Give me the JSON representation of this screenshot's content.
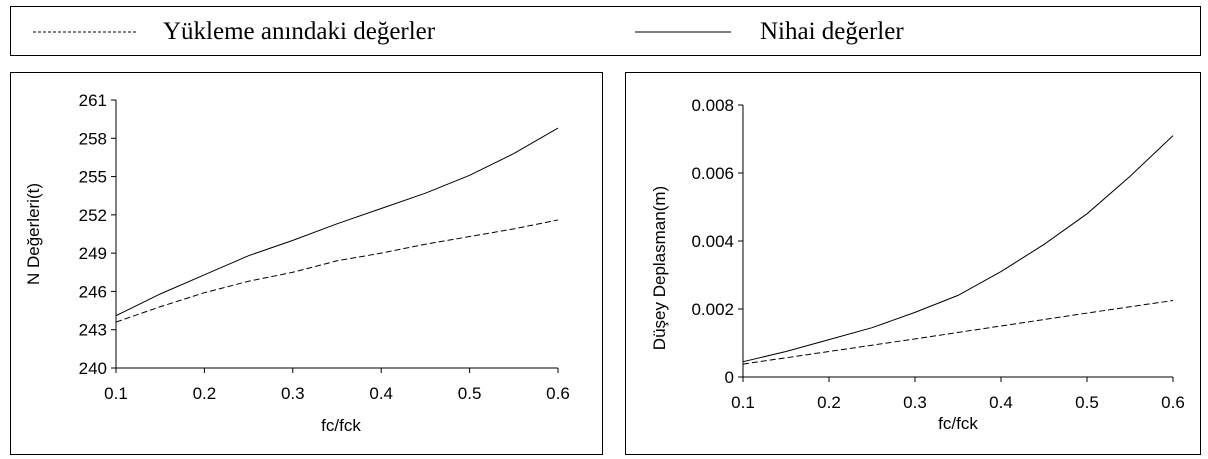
{
  "legend": {
    "items": [
      {
        "label": "Yükleme anındaki değerler",
        "style": "dashed"
      },
      {
        "label": "Nihai değerler",
        "style": "solid"
      }
    ]
  },
  "chart_data": [
    {
      "type": "line",
      "title": "",
      "xlabel": "fc/fck",
      "ylabel": "N Değerleri(t)",
      "xlim": [
        0.1,
        0.6
      ],
      "ylim": [
        240,
        261
      ],
      "xticks": [
        "0.1",
        "0.2",
        "0.3",
        "0.4",
        "0.5",
        "0.6"
      ],
      "yticks": [
        "240",
        "243",
        "246",
        "249",
        "252",
        "255",
        "258",
        "261"
      ],
      "grid": false,
      "series": [
        {
          "name": "Yükleme anındaki değerler",
          "style": "dashed",
          "x": [
            0.1,
            0.15,
            0.2,
            0.25,
            0.3,
            0.35,
            0.4,
            0.45,
            0.5,
            0.55,
            0.6
          ],
          "y": [
            243.6,
            244.8,
            245.9,
            246.8,
            247.5,
            248.4,
            249.0,
            249.7,
            250.3,
            250.9,
            251.6
          ]
        },
        {
          "name": "Nihai değerler",
          "style": "solid",
          "x": [
            0.1,
            0.15,
            0.2,
            0.25,
            0.3,
            0.35,
            0.4,
            0.45,
            0.5,
            0.55,
            0.6
          ],
          "y": [
            244.1,
            245.8,
            247.3,
            248.8,
            250.0,
            251.3,
            252.5,
            253.7,
            255.1,
            256.8,
            258.8
          ]
        }
      ]
    },
    {
      "type": "line",
      "title": "",
      "xlabel": "fc/fck",
      "ylabel": "Düşey Deplasman(m)",
      "xlim": [
        0.1,
        0.6
      ],
      "ylim": [
        0,
        0.008
      ],
      "xticks": [
        "0.1",
        "0.2",
        "0.3",
        "0.4",
        "0.5",
        "0.6"
      ],
      "yticks": [
        "0",
        "0.002",
        "0.004",
        "0.006",
        "0.008"
      ],
      "grid": false,
      "series": [
        {
          "name": "Yükleme anındaki değerler",
          "style": "dashed",
          "x": [
            0.1,
            0.2,
            0.3,
            0.4,
            0.5,
            0.6
          ],
          "y": [
            0.00038,
            0.00075,
            0.00112,
            0.0015,
            0.00188,
            0.00225
          ]
        },
        {
          "name": "Nihai değerler",
          "style": "solid",
          "x": [
            0.1,
            0.15,
            0.2,
            0.25,
            0.3,
            0.35,
            0.4,
            0.45,
            0.5,
            0.55,
            0.6
          ],
          "y": [
            0.00045,
            0.00075,
            0.0011,
            0.00145,
            0.0019,
            0.0024,
            0.0031,
            0.0039,
            0.0048,
            0.0059,
            0.0071
          ]
        }
      ]
    }
  ]
}
